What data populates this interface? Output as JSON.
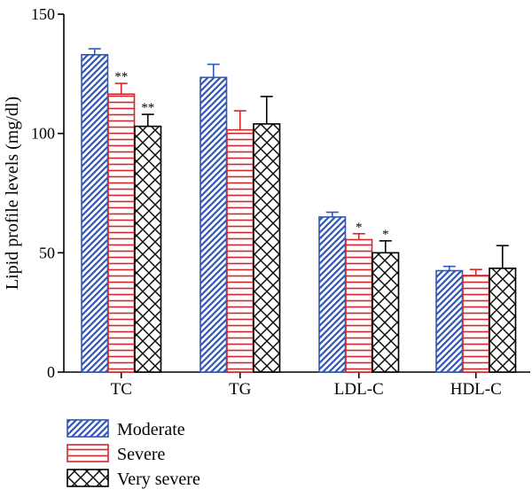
{
  "chart_data": {
    "type": "bar",
    "title": "",
    "xlabel": "",
    "ylabel": "Lipid profile levels (mg/dl)",
    "ylim": [
      0,
      150
    ],
    "yticks": [
      0,
      50,
      100,
      150
    ],
    "categories": [
      "TC",
      "TG",
      "LDL-C",
      "HDL-C"
    ],
    "series": [
      {
        "name": "Moderate",
        "pattern": "diagonal",
        "color": "#2f56b8",
        "values": [
          133,
          123.5,
          65,
          42.5
        ],
        "errors": [
          2.5,
          5.5,
          2,
          1.8
        ],
        "significance": [
          "",
          "",
          "",
          ""
        ]
      },
      {
        "name": "Severe",
        "pattern": "horizontal",
        "color": "#d6262b",
        "values": [
          116.5,
          101.5,
          55.5,
          40.5
        ],
        "errors": [
          4.5,
          8,
          2.5,
          2.5
        ],
        "significance": [
          "**",
          "",
          "*",
          ""
        ]
      },
      {
        "name": "Very severe",
        "pattern": "crosshatch",
        "color": "#000000",
        "values": [
          103,
          104,
          50,
          43.5
        ],
        "errors": [
          5,
          11.5,
          5,
          9.5
        ],
        "significance": [
          "**",
          "",
          "*",
          ""
        ]
      }
    ],
    "grid": false,
    "legend_position": "bottom-left"
  }
}
